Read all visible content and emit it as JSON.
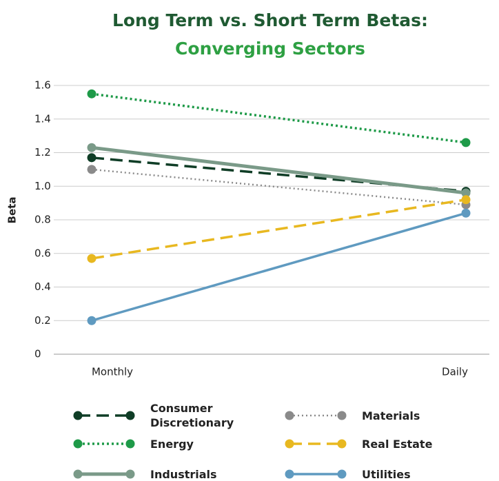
{
  "chart_data": {
    "type": "line",
    "title": "Long Term vs. Short Term Betas:",
    "subtitle": "Converging Sectors",
    "y_label": "Beta",
    "categories": [
      "Monthly",
      "Daily"
    ],
    "ylim": [
      0,
      1.6
    ],
    "yticks": [
      0,
      0.2,
      0.4,
      0.6,
      0.8,
      {
        "value": 1,
        "label": "1.0"
      },
      1.2,
      1.4,
      1.6
    ],
    "grid": true,
    "legend": "bottom",
    "series": [
      {
        "name": "Consumer Discretionary",
        "color": "#0f3d26",
        "line_style": "dashed",
        "values": [
          1.17,
          0.97
        ]
      },
      {
        "name": "Energy",
        "color": "#1e9a48",
        "line_style": "dotted",
        "values": [
          1.55,
          1.26
        ]
      },
      {
        "name": "Industrials",
        "color": "#7a9a88",
        "line_style": "solid",
        "values": [
          1.23,
          0.96
        ]
      },
      {
        "name": "Materials",
        "color": "#8a8a8a",
        "line_style": "dotted",
        "values": [
          1.1,
          0.89
        ]
      },
      {
        "name": "Real Estate",
        "color": "#e8b820",
        "line_style": "dashed",
        "values": [
          0.57,
          0.92
        ]
      },
      {
        "name": "Utilities",
        "color": "#5f9ac0",
        "line_style": "solid",
        "values": [
          0.2,
          0.84
        ]
      }
    ]
  }
}
